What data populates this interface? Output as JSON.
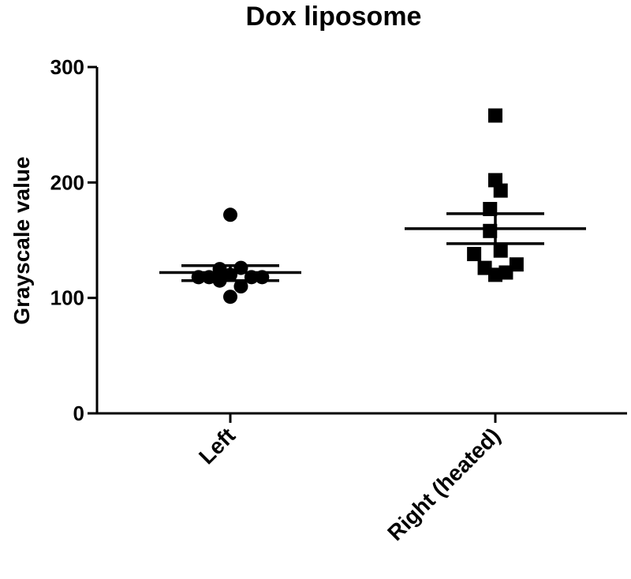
{
  "chart_data": {
    "type": "scatter",
    "title": "Dox liposome",
    "xlabel": "",
    "ylabel": "Grayscale value",
    "ylim": [
      0,
      300
    ],
    "yticks": [
      0,
      100,
      200,
      300
    ],
    "categories": [
      "Left",
      "Right (heated)"
    ],
    "grid": false,
    "legend": "none",
    "series": [
      {
        "category": "Left",
        "marker": "circle",
        "points": [
          {
            "offset": 0.0,
            "y": 172
          },
          {
            "offset": -0.24,
            "y": 118
          },
          {
            "offset": -0.16,
            "y": 118
          },
          {
            "offset": -0.08,
            "y": 125
          },
          {
            "offset": -0.08,
            "y": 115
          },
          {
            "offset": 0.0,
            "y": 120
          },
          {
            "offset": 0.0,
            "y": 101
          },
          {
            "offset": 0.08,
            "y": 126
          },
          {
            "offset": 0.08,
            "y": 110
          },
          {
            "offset": 0.16,
            "y": 118
          },
          {
            "offset": 0.24,
            "y": 118
          }
        ],
        "mean": 122,
        "sem": [
          115,
          128
        ]
      },
      {
        "category": "Right (heated)",
        "marker": "square",
        "points": [
          {
            "offset": 0.0,
            "y": 258
          },
          {
            "offset": 0.0,
            "y": 202
          },
          {
            "offset": 0.04,
            "y": 193
          },
          {
            "offset": -0.04,
            "y": 177
          },
          {
            "offset": -0.04,
            "y": 158
          },
          {
            "offset": -0.16,
            "y": 138
          },
          {
            "offset": 0.04,
            "y": 141
          },
          {
            "offset": -0.08,
            "y": 126
          },
          {
            "offset": 0.0,
            "y": 120
          },
          {
            "offset": 0.08,
            "y": 122
          },
          {
            "offset": 0.16,
            "y": 129
          }
        ],
        "mean": 160,
        "sem": [
          147,
          173
        ]
      }
    ]
  }
}
